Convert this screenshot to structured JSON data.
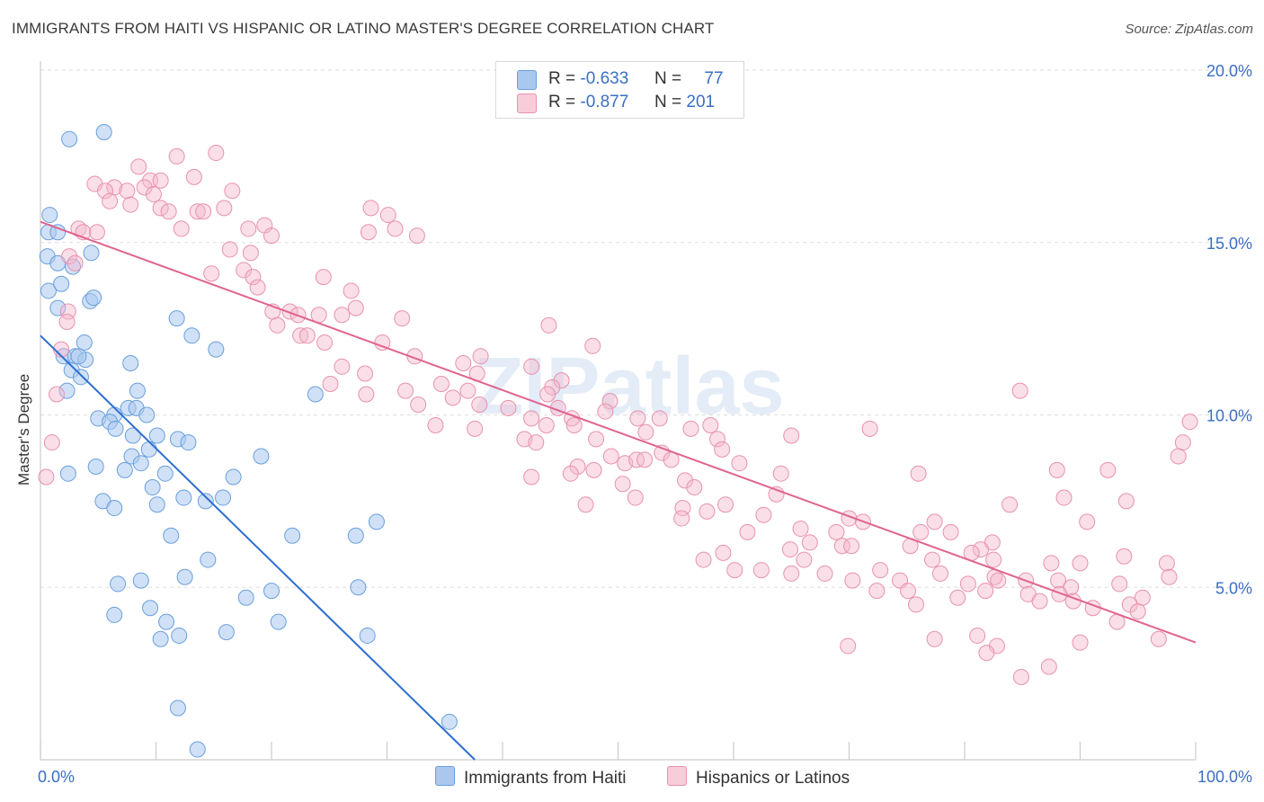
{
  "header": {
    "title": "IMMIGRANTS FROM HAITI VS HISPANIC OR LATINO MASTER'S DEGREE CORRELATION CHART",
    "source": "Source: ZipAtlas.com"
  },
  "watermark": "ZIPatlas",
  "legend": {
    "rows": [
      {
        "r_label": "R =",
        "r_value": "-0.633",
        "n_label": "N =",
        "n_value": "77",
        "color": "#a9c8f0"
      },
      {
        "r_label": "R =",
        "r_value": "-0.877",
        "n_label": "N =",
        "n_value": "201",
        "color": "#f5b8cb"
      }
    ]
  },
  "colors": {
    "blue_fill": "#a9c8f0",
    "blue_stroke": "#6a9fdc",
    "blue_line": "#2e6fd0",
    "pink_fill": "#f5b8cb",
    "pink_stroke": "#e892ab",
    "pink_line": "#e0638e",
    "grid": "#dddddd",
    "tick_text": "#3a6fc4"
  },
  "chart_data": {
    "type": "scatter",
    "xlabel": "",
    "ylabel": "Master's Degree",
    "xlim": [
      0,
      100
    ],
    "ylim": [
      0,
      20
    ],
    "x_tick_labels": [
      "0.0%",
      "100.0%"
    ],
    "y_tick_values": [
      5,
      10,
      15,
      20
    ],
    "y_tick_labels": [
      "5.0%",
      "10.0%",
      "15.0%",
      "20.0%"
    ],
    "grid": "horizontal dashed",
    "legend_position": "bottom",
    "series": [
      {
        "name": "Immigrants from Haiti",
        "trend": {
          "x": [
            0.0,
            37.6
          ],
          "y": [
            12.3,
            0.0
          ]
        },
        "points": [
          [
            2.5,
            18.0
          ],
          [
            5.5,
            18.2
          ],
          [
            0.8,
            15.8
          ],
          [
            0.7,
            15.3
          ],
          [
            0.6,
            14.6
          ],
          [
            1.5,
            14.4
          ],
          [
            4.4,
            14.7
          ],
          [
            2.8,
            14.3
          ],
          [
            0.7,
            13.6
          ],
          [
            1.8,
            13.8
          ],
          [
            1.5,
            13.1
          ],
          [
            4.3,
            13.3
          ],
          [
            4.6,
            13.4
          ],
          [
            11.8,
            12.8
          ],
          [
            13.1,
            12.3
          ],
          [
            3.8,
            12.1
          ],
          [
            15.2,
            11.9
          ],
          [
            2.0,
            11.7
          ],
          [
            3.0,
            11.7
          ],
          [
            3.9,
            11.6
          ],
          [
            7.8,
            11.5
          ],
          [
            2.7,
            11.3
          ],
          [
            3.5,
            11.1
          ],
          [
            2.3,
            10.7
          ],
          [
            8.4,
            10.7
          ],
          [
            23.8,
            10.6
          ],
          [
            7.6,
            10.2
          ],
          [
            8.3,
            10.2
          ],
          [
            5.0,
            9.9
          ],
          [
            6.4,
            10.0
          ],
          [
            9.2,
            10.0
          ],
          [
            6.0,
            9.8
          ],
          [
            6.5,
            9.6
          ],
          [
            8.0,
            9.4
          ],
          [
            10.1,
            9.4
          ],
          [
            11.9,
            9.3
          ],
          [
            12.8,
            9.2
          ],
          [
            9.4,
            9.0
          ],
          [
            19.1,
            8.8
          ],
          [
            7.9,
            8.8
          ],
          [
            8.7,
            8.6
          ],
          [
            4.8,
            8.5
          ],
          [
            2.4,
            8.3
          ],
          [
            7.3,
            8.4
          ],
          [
            10.8,
            8.3
          ],
          [
            16.7,
            8.2
          ],
          [
            9.7,
            7.9
          ],
          [
            12.4,
            7.6
          ],
          [
            15.8,
            7.6
          ],
          [
            5.4,
            7.5
          ],
          [
            14.3,
            7.5
          ],
          [
            10.1,
            7.4
          ],
          [
            6.4,
            7.3
          ],
          [
            29.1,
            6.9
          ],
          [
            11.3,
            6.5
          ],
          [
            21.8,
            6.5
          ],
          [
            27.3,
            6.5
          ],
          [
            14.5,
            5.8
          ],
          [
            12.5,
            5.3
          ],
          [
            8.7,
            5.2
          ],
          [
            6.7,
            5.1
          ],
          [
            27.5,
            5.0
          ],
          [
            20.0,
            4.9
          ],
          [
            17.8,
            4.7
          ],
          [
            9.5,
            4.4
          ],
          [
            6.4,
            4.2
          ],
          [
            10.9,
            4.0
          ],
          [
            20.6,
            4.0
          ],
          [
            16.1,
            3.7
          ],
          [
            12.0,
            3.6
          ],
          [
            10.4,
            3.5
          ],
          [
            28.3,
            3.6
          ],
          [
            11.9,
            1.5
          ],
          [
            35.4,
            1.1
          ],
          [
            13.6,
            0.3
          ],
          [
            1.5,
            15.3
          ],
          [
            3.3,
            11.7
          ]
        ]
      },
      {
        "name": "Hispanics or Latinos",
        "trend": {
          "x": [
            0.0,
            100.0
          ],
          "y": [
            15.6,
            3.4
          ]
        },
        "points": [
          [
            15.2,
            17.6
          ],
          [
            11.8,
            17.5
          ],
          [
            8.5,
            17.2
          ],
          [
            13.3,
            16.9
          ],
          [
            9.5,
            16.8
          ],
          [
            10.4,
            16.8
          ],
          [
            4.7,
            16.7
          ],
          [
            6.4,
            16.6
          ],
          [
            5.6,
            16.5
          ],
          [
            7.5,
            16.5
          ],
          [
            9.0,
            16.6
          ],
          [
            16.6,
            16.5
          ],
          [
            9.8,
            16.4
          ],
          [
            7.8,
            16.1
          ],
          [
            6.0,
            16.2
          ],
          [
            10.4,
            16.0
          ],
          [
            11.1,
            15.9
          ],
          [
            13.6,
            15.9
          ],
          [
            14.1,
            15.9
          ],
          [
            15.9,
            16.0
          ],
          [
            28.6,
            16.0
          ],
          [
            30.1,
            15.8
          ],
          [
            3.3,
            15.4
          ],
          [
            3.7,
            15.3
          ],
          [
            4.9,
            15.3
          ],
          [
            12.2,
            15.4
          ],
          [
            19.4,
            15.5
          ],
          [
            30.7,
            15.4
          ],
          [
            28.4,
            15.3
          ],
          [
            18.0,
            15.4
          ],
          [
            20.0,
            15.2
          ],
          [
            32.6,
            15.2
          ],
          [
            16.4,
            14.8
          ],
          [
            18.2,
            14.7
          ],
          [
            2.5,
            14.6
          ],
          [
            3.0,
            14.4
          ],
          [
            14.8,
            14.1
          ],
          [
            17.6,
            14.2
          ],
          [
            18.4,
            14.0
          ],
          [
            24.5,
            14.0
          ],
          [
            18.8,
            13.7
          ],
          [
            26.9,
            13.6
          ],
          [
            2.4,
            13.0
          ],
          [
            20.1,
            13.0
          ],
          [
            21.6,
            13.0
          ],
          [
            22.3,
            12.9
          ],
          [
            24.1,
            12.9
          ],
          [
            26.1,
            12.9
          ],
          [
            27.3,
            13.1
          ],
          [
            31.3,
            12.8
          ],
          [
            2.3,
            12.7
          ],
          [
            20.5,
            12.6
          ],
          [
            22.5,
            12.3
          ],
          [
            23.1,
            12.3
          ],
          [
            24.6,
            12.1
          ],
          [
            29.6,
            12.1
          ],
          [
            44.0,
            12.6
          ],
          [
            47.8,
            12.0
          ],
          [
            1.8,
            11.9
          ],
          [
            32.4,
            11.7
          ],
          [
            38.1,
            11.7
          ],
          [
            26.1,
            11.4
          ],
          [
            36.6,
            11.5
          ],
          [
            28.1,
            11.2
          ],
          [
            42.5,
            11.4
          ],
          [
            25.1,
            10.9
          ],
          [
            37.8,
            11.2
          ],
          [
            45.1,
            11.0
          ],
          [
            34.7,
            10.9
          ],
          [
            44.3,
            10.8
          ],
          [
            84.8,
            10.7
          ],
          [
            1.4,
            10.6
          ],
          [
            28.2,
            10.6
          ],
          [
            31.6,
            10.7
          ],
          [
            37.0,
            10.7
          ],
          [
            43.9,
            10.6
          ],
          [
            49.3,
            10.4
          ],
          [
            35.7,
            10.5
          ],
          [
            32.7,
            10.3
          ],
          [
            38.0,
            10.3
          ],
          [
            40.5,
            10.2
          ],
          [
            44.8,
            10.2
          ],
          [
            48.9,
            10.1
          ],
          [
            42.5,
            9.9
          ],
          [
            46.0,
            9.9
          ],
          [
            51.7,
            9.9
          ],
          [
            53.6,
            9.9
          ],
          [
            43.8,
            9.7
          ],
          [
            34.2,
            9.7
          ],
          [
            37.6,
            9.6
          ],
          [
            46.2,
            9.7
          ],
          [
            52.4,
            9.5
          ],
          [
            56.3,
            9.6
          ],
          [
            58.0,
            9.7
          ],
          [
            71.8,
            9.6
          ],
          [
            65.0,
            9.4
          ],
          [
            41.9,
            9.3
          ],
          [
            42.9,
            9.2
          ],
          [
            48.1,
            9.3
          ],
          [
            58.6,
            9.3
          ],
          [
            1.0,
            9.2
          ],
          [
            99.5,
            9.8
          ],
          [
            98.9,
            9.2
          ],
          [
            98.5,
            8.8
          ],
          [
            53.8,
            8.9
          ],
          [
            59.0,
            9.0
          ],
          [
            49.4,
            8.8
          ],
          [
            50.6,
            8.6
          ],
          [
            51.6,
            8.7
          ],
          [
            52.3,
            8.7
          ],
          [
            54.6,
            8.7
          ],
          [
            47.9,
            8.4
          ],
          [
            46.5,
            8.5
          ],
          [
            60.5,
            8.6
          ],
          [
            45.9,
            8.3
          ],
          [
            42.5,
            8.2
          ],
          [
            64.1,
            8.3
          ],
          [
            92.4,
            8.4
          ],
          [
            76.0,
            8.3
          ],
          [
            88.0,
            8.4
          ],
          [
            0.5,
            8.2
          ],
          [
            55.8,
            8.1
          ],
          [
            56.6,
            7.9
          ],
          [
            50.4,
            8.0
          ],
          [
            51.5,
            7.6
          ],
          [
            63.7,
            7.7
          ],
          [
            59.3,
            7.4
          ],
          [
            47.2,
            7.4
          ],
          [
            94.0,
            7.5
          ],
          [
            88.6,
            7.6
          ],
          [
            83.9,
            7.4
          ],
          [
            62.6,
            7.1
          ],
          [
            57.7,
            7.2
          ],
          [
            70.0,
            7.0
          ],
          [
            55.6,
            7.3
          ],
          [
            55.5,
            7.0
          ],
          [
            71.2,
            6.9
          ],
          [
            90.6,
            6.9
          ],
          [
            77.4,
            6.9
          ],
          [
            65.8,
            6.7
          ],
          [
            68.9,
            6.6
          ],
          [
            76.2,
            6.6
          ],
          [
            78.8,
            6.6
          ],
          [
            61.2,
            6.6
          ],
          [
            82.4,
            6.3
          ],
          [
            66.6,
            6.3
          ],
          [
            69.4,
            6.2
          ],
          [
            70.2,
            6.2
          ],
          [
            75.3,
            6.2
          ],
          [
            64.9,
            6.1
          ],
          [
            81.4,
            6.1
          ],
          [
            80.6,
            6.0
          ],
          [
            59.1,
            6.0
          ],
          [
            57.4,
            5.8
          ],
          [
            66.1,
            5.8
          ],
          [
            77.2,
            5.8
          ],
          [
            82.5,
            5.8
          ],
          [
            87.5,
            5.7
          ],
          [
            90.0,
            5.7
          ],
          [
            93.8,
            5.9
          ],
          [
            97.5,
            5.7
          ],
          [
            60.1,
            5.5
          ],
          [
            62.4,
            5.5
          ],
          [
            72.7,
            5.5
          ],
          [
            65.0,
            5.4
          ],
          [
            67.9,
            5.4
          ],
          [
            77.9,
            5.4
          ],
          [
            82.6,
            5.3
          ],
          [
            97.7,
            5.3
          ],
          [
            74.4,
            5.2
          ],
          [
            70.3,
            5.2
          ],
          [
            82.9,
            5.2
          ],
          [
            80.3,
            5.1
          ],
          [
            85.3,
            5.2
          ],
          [
            88.1,
            5.2
          ],
          [
            93.4,
            5.1
          ],
          [
            89.2,
            5.0
          ],
          [
            72.4,
            4.9
          ],
          [
            75.1,
            4.9
          ],
          [
            81.8,
            4.9
          ],
          [
            85.5,
            4.8
          ],
          [
            88.2,
            4.8
          ],
          [
            79.4,
            4.7
          ],
          [
            95.4,
            4.7
          ],
          [
            86.5,
            4.6
          ],
          [
            75.8,
            4.5
          ],
          [
            89.4,
            4.6
          ],
          [
            94.3,
            4.5
          ],
          [
            91.1,
            4.4
          ],
          [
            95.0,
            4.3
          ],
          [
            93.2,
            4.0
          ],
          [
            81.1,
            3.6
          ],
          [
            77.4,
            3.5
          ],
          [
            82.8,
            3.3
          ],
          [
            81.9,
            3.1
          ],
          [
            90.0,
            3.4
          ],
          [
            96.8,
            3.5
          ],
          [
            69.9,
            3.3
          ],
          [
            84.9,
            2.4
          ],
          [
            87.3,
            2.7
          ]
        ]
      }
    ]
  }
}
